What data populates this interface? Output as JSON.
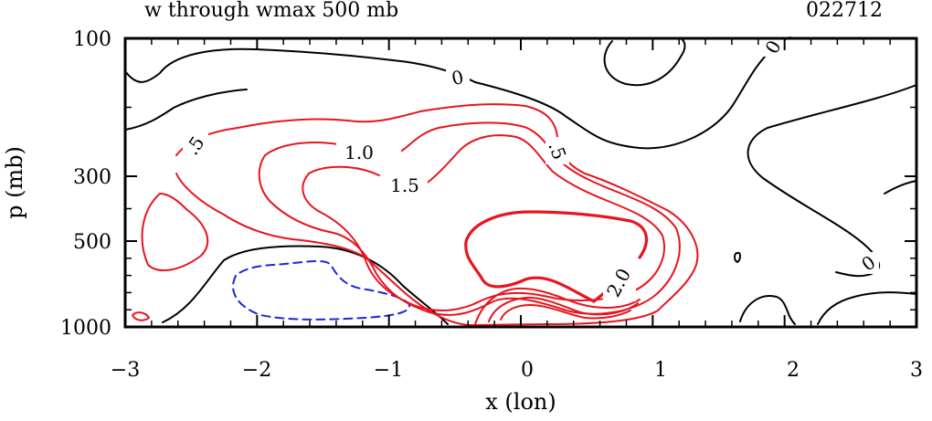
{
  "chart_data": {
    "type": "contour",
    "title": "w through wmax 500 mb",
    "case_id": "022712",
    "xlabel": "x (lon)",
    "ylabel": "p (mb)",
    "xlim": [
      -3,
      3
    ],
    "ylim": [
      1000,
      100
    ],
    "y_scale": "pressure",
    "x_ticks": [
      -3,
      -2,
      -1,
      0,
      1,
      2,
      3
    ],
    "x_tick_labels": [
      "−3",
      "−2",
      "−1",
      "0",
      "1",
      "2",
      "3"
    ],
    "y_ticks": [
      100,
      300,
      500,
      1000
    ],
    "y_tick_labels": [
      "100",
      "300",
      "500",
      "1000"
    ],
    "contour_levels": [
      -0.5,
      0,
      0.5,
      1.0,
      1.5,
      2.0
    ],
    "contour_labels": [
      {
        "text": "0",
        "x": -0.5,
        "y": 136
      },
      {
        "text": "0",
        "x": 1.85,
        "y": 110
      },
      {
        "text": "0",
        "x": 2.55,
        "y": 640
      },
      {
        "text": ".5",
        "x": -2.55,
        "y": 235
      },
      {
        "text": "1.0",
        "x": -1.45,
        "y": 255
      },
      {
        "text": "1.5",
        "x": -0.95,
        "y": 370
      },
      {
        "text": ".5",
        "x": 0.28,
        "y": 250
      },
      {
        "text": "2.0",
        "x": 0.72,
        "y": 740
      }
    ],
    "colors": {
      "zero": "#000000",
      "positive": "#e8141e",
      "negative": "#1c28d6"
    },
    "grid": false
  }
}
